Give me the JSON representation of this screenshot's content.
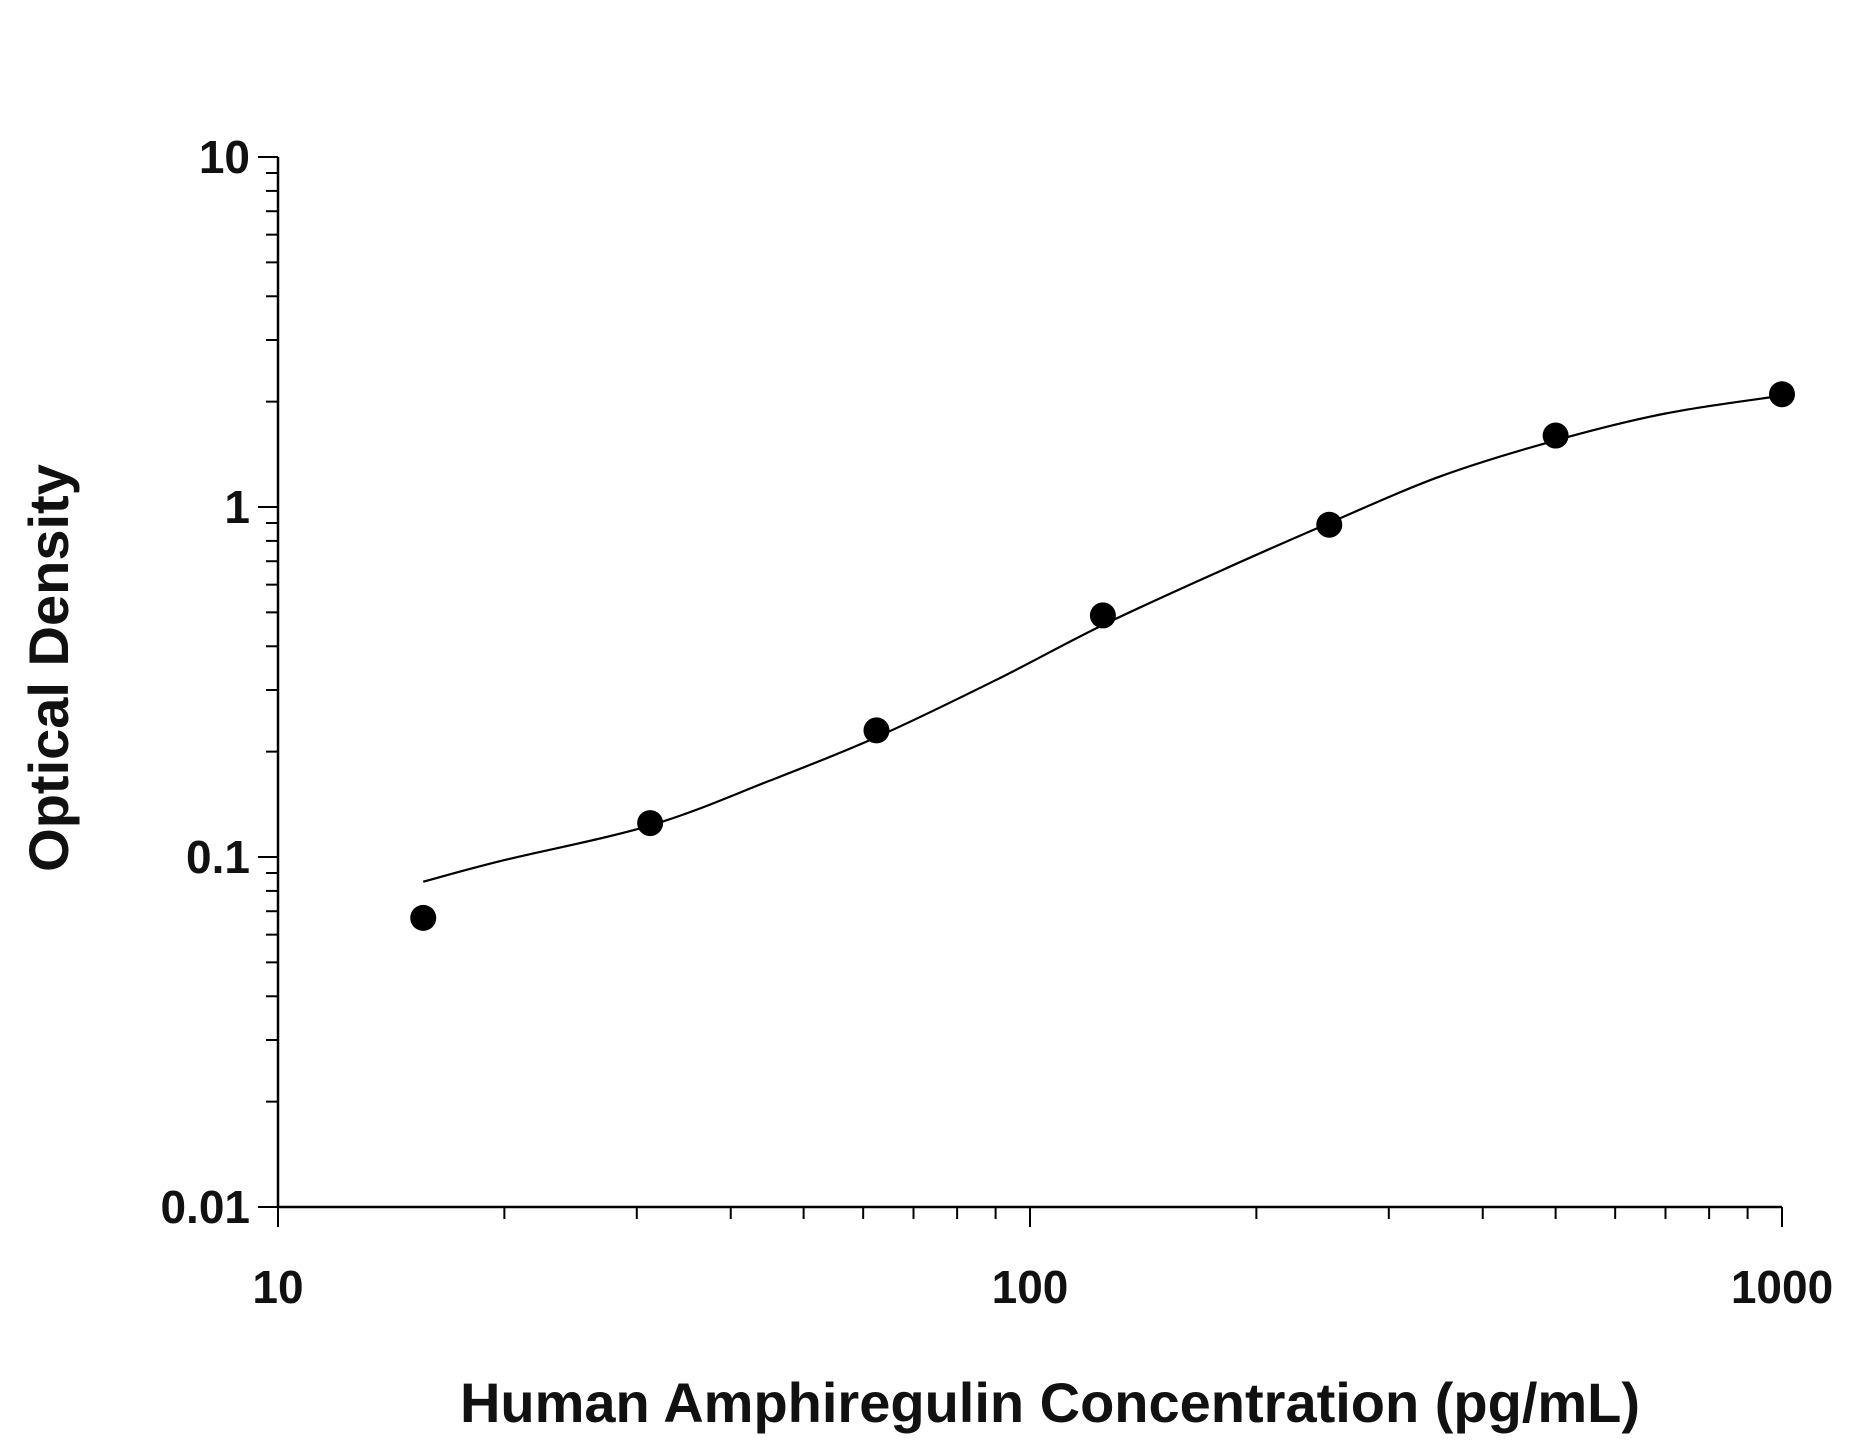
{
  "chart_data": {
    "type": "scatter",
    "title": "",
    "xlabel": "Human Amphiregulin Concentration (pg/mL)",
    "ylabel": "Optical Density",
    "x_scale": "log",
    "y_scale": "log",
    "xlim": [
      10,
      1000
    ],
    "ylim": [
      0.01,
      10
    ],
    "x_ticks": [
      10,
      100,
      1000
    ],
    "x_tick_labels": [
      "10",
      "100",
      "1000"
    ],
    "y_ticks": [
      0.01,
      0.1,
      1,
      10
    ],
    "y_tick_labels": [
      "0.01",
      "0.1",
      "1",
      "10"
    ],
    "grid": false,
    "legend": "none",
    "series": [
      {
        "kind": "points",
        "x": [
          15.6,
          31.25,
          62.5,
          125,
          250,
          500,
          1000
        ],
        "y": [
          0.067,
          0.125,
          0.23,
          0.49,
          0.89,
          1.6,
          2.1
        ]
      },
      {
        "kind": "fit-curve",
        "x": [
          15.6,
          20,
          31.25,
          45,
          62.5,
          90,
          125,
          180,
          250,
          350,
          500,
          700,
          1000
        ],
        "y": [
          0.085,
          0.098,
          0.123,
          0.165,
          0.22,
          0.32,
          0.46,
          0.66,
          0.9,
          1.22,
          1.55,
          1.85,
          2.08
        ]
      }
    ],
    "colors": {
      "marker": "#000000",
      "line": "#000000",
      "axis": "#000000"
    }
  }
}
